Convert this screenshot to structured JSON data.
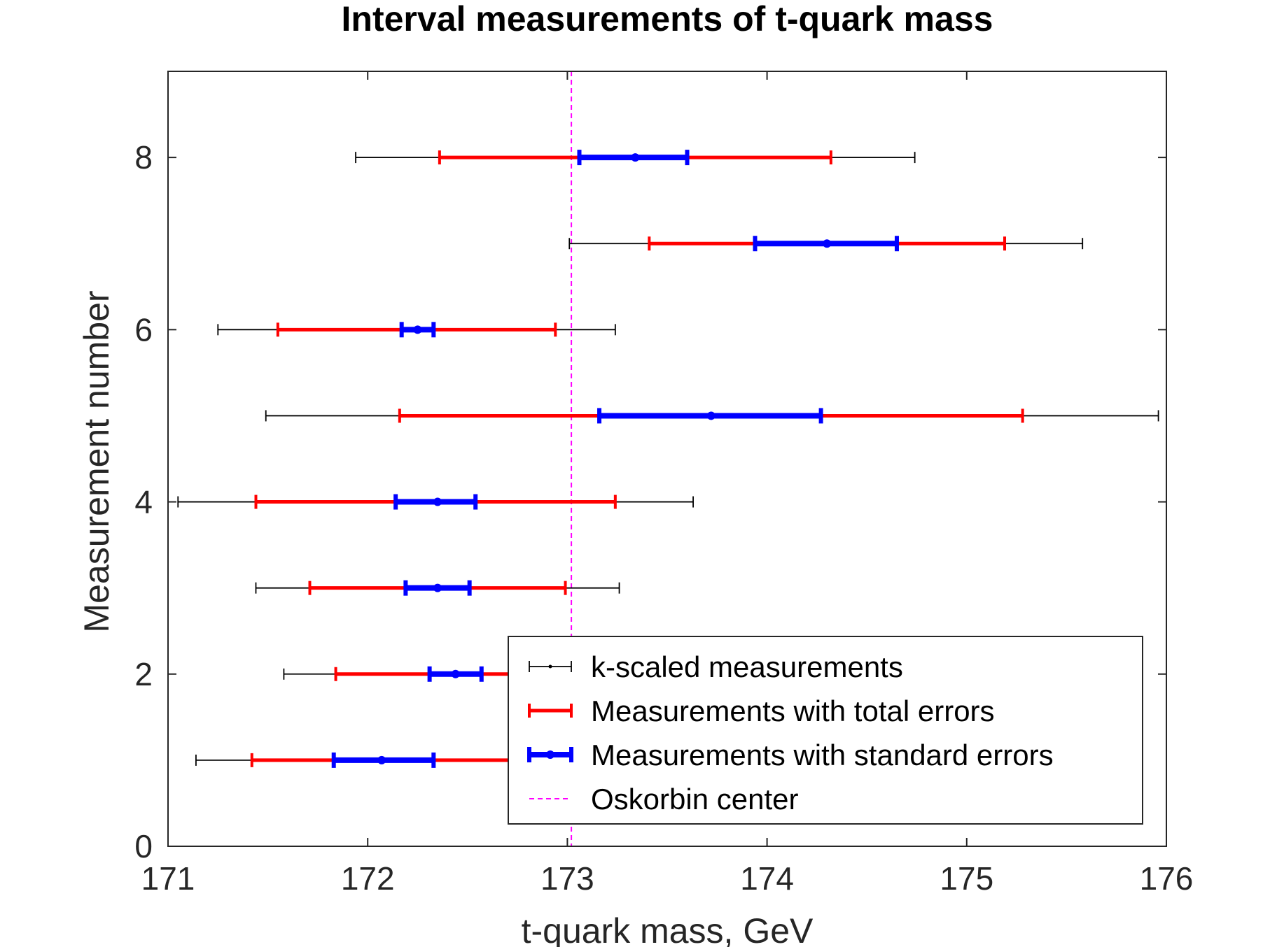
{
  "chart_data": {
    "type": "errorbar",
    "title": "Interval measurements of t-quark mass",
    "xlabel": "t-quark mass, GeV",
    "ylabel": "Measurement number",
    "xlim": [
      171,
      176
    ],
    "ylim": [
      0,
      9
    ],
    "xticks": [
      171,
      172,
      173,
      174,
      175,
      176
    ],
    "yticks": [
      0,
      2,
      4,
      6,
      8
    ],
    "grid": false,
    "legend_position": "bottom-right",
    "series": [
      {
        "name": "k-scaled measurements",
        "color": "#000000",
        "points": [
          {
            "y": 1,
            "center": 172.07,
            "low": 171.14,
            "high": 173.0
          },
          {
            "y": 2,
            "center": 172.44,
            "low": 171.58,
            "high": 173.3
          },
          {
            "y": 3,
            "center": 172.35,
            "low": 171.44,
            "high": 173.26
          },
          {
            "y": 4,
            "center": 172.35,
            "low": 171.05,
            "high": 173.63
          },
          {
            "y": 5,
            "center": 173.72,
            "low": 171.49,
            "high": 175.96
          },
          {
            "y": 6,
            "center": 172.25,
            "low": 171.25,
            "high": 173.24
          },
          {
            "y": 7,
            "center": 174.3,
            "low": 173.01,
            "high": 175.58
          },
          {
            "y": 8,
            "center": 173.34,
            "low": 171.94,
            "high": 174.74
          }
        ]
      },
      {
        "name": "Measurements with total errors",
        "color": "#ff0000",
        "points": [
          {
            "y": 1,
            "center": 172.07,
            "low": 171.42,
            "high": 172.72
          },
          {
            "y": 2,
            "center": 172.44,
            "low": 171.84,
            "high": 173.04
          },
          {
            "y": 3,
            "center": 172.35,
            "low": 171.71,
            "high": 172.99
          },
          {
            "y": 4,
            "center": 172.35,
            "low": 171.44,
            "high": 173.24
          },
          {
            "y": 5,
            "center": 173.72,
            "low": 172.16,
            "high": 175.28
          },
          {
            "y": 6,
            "center": 172.25,
            "low": 171.55,
            "high": 172.94
          },
          {
            "y": 7,
            "center": 174.3,
            "low": 173.41,
            "high": 175.19
          },
          {
            "y": 8,
            "center": 173.34,
            "low": 172.36,
            "high": 174.32
          }
        ]
      },
      {
        "name": "Measurements with standard errors",
        "color": "#0000ff",
        "points": [
          {
            "y": 1,
            "center": 172.07,
            "low": 171.83,
            "high": 172.33
          },
          {
            "y": 2,
            "center": 172.44,
            "low": 172.31,
            "high": 172.57
          },
          {
            "y": 3,
            "center": 172.35,
            "low": 172.19,
            "high": 172.51
          },
          {
            "y": 4,
            "center": 172.35,
            "low": 172.14,
            "high": 172.54
          },
          {
            "y": 5,
            "center": 173.72,
            "low": 173.16,
            "high": 174.27
          },
          {
            "y": 6,
            "center": 172.25,
            "low": 172.17,
            "high": 172.33
          },
          {
            "y": 7,
            "center": 174.3,
            "low": 173.94,
            "high": 174.65
          },
          {
            "y": 8,
            "center": 173.34,
            "low": 173.06,
            "high": 173.6
          }
        ]
      }
    ],
    "reference_line": {
      "name": "Oskorbin center",
      "x": 173.02,
      "color": "#ff00ff",
      "style": "dashed"
    }
  }
}
